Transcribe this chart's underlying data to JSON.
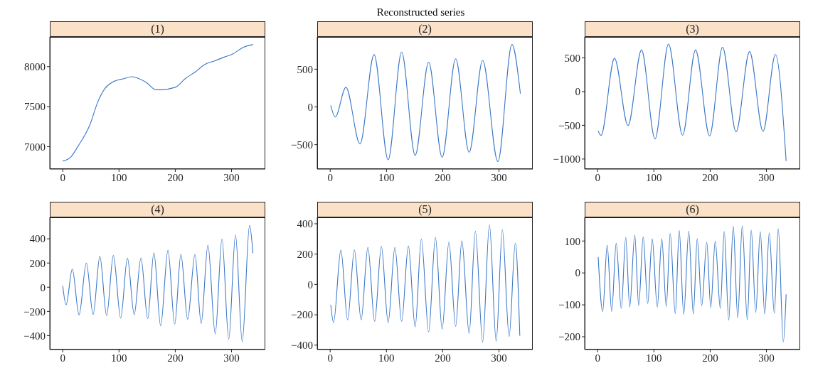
{
  "chart_data": [
    {
      "type": "line",
      "title": "(1)",
      "annotations": [
        "Reconstructed series"
      ],
      "xlim": [
        -23,
        360
      ],
      "xticks": [
        0,
        100,
        200,
        300
      ],
      "ylim": [
        6720,
        8371
      ],
      "yticks": [
        7000,
        7500,
        8000
      ],
      "grid": false,
      "legend": false,
      "marker": "none",
      "line_style": "solid",
      "series": [
        {
          "color": "#3a78c8",
          "x": [
            0,
            14,
            27,
            49,
            62,
            75,
            88,
            110,
            122,
            148,
            166,
            174,
            200,
            218,
            235,
            252,
            270,
            287,
            300,
            322,
            338
          ],
          "values": [
            6821,
            6868,
            7003,
            7286,
            7553,
            7726,
            7805,
            7852,
            7874,
            7805,
            7711,
            7711,
            7742,
            7852,
            7931,
            8025,
            8072,
            8119,
            8151,
            8245,
            8277
          ]
        }
      ]
    },
    {
      "type": "line",
      "title": "(2)",
      "xlim": [
        -23,
        360
      ],
      "xticks": [
        0,
        100,
        200,
        300
      ],
      "ylim": [
        -823,
        927
      ],
      "yticks": [
        -500,
        0,
        500
      ],
      "grid": false,
      "legend": false,
      "marker": "none",
      "line_style": "solid",
      "series": [
        {
          "color": "#3a78c8",
          "x": [
            1,
            9,
            28,
            53,
            78,
            103,
            127,
            151,
            175,
            199,
            223,
            247,
            271,
            298,
            323,
            338
          ],
          "values": [
            20,
            -133,
            260,
            -490,
            693,
            -700,
            727,
            -640,
            593,
            -667,
            637,
            -600,
            617,
            -723,
            827,
            177
          ]
        }
      ]
    },
    {
      "type": "line",
      "title": "(3)",
      "xlim": [
        -23,
        360
      ],
      "xticks": [
        0,
        100,
        200,
        300
      ],
      "ylim": [
        -1149,
        810
      ],
      "yticks": [
        -1000,
        -500,
        0,
        500
      ],
      "grid": false,
      "legend": false,
      "marker": "none",
      "line_style": "solid",
      "series": [
        {
          "color": "#3a78c8",
          "x": [
            1,
            6,
            30,
            54,
            78,
            102,
            126,
            151,
            174,
            199,
            222,
            246,
            270,
            294,
            316,
            335
          ],
          "values": [
            -582,
            -649,
            493,
            -504,
            616,
            -701,
            705,
            -646,
            616,
            -657,
            657,
            -597,
            593,
            -590,
            549,
            -1030
          ]
        }
      ]
    },
    {
      "type": "line",
      "title": "(4)",
      "xlim": [
        -23,
        360
      ],
      "xticks": [
        0,
        100,
        200,
        300
      ],
      "ylim": [
        -515,
        577
      ],
      "yticks": [
        -400,
        -200,
        0,
        200,
        400
      ],
      "grid": false,
      "legend": false,
      "marker": "none",
      "line_style": "solid",
      "series": [
        {
          "color": "#3a78c8",
          "x": [
            0,
            6,
            17,
            29,
            42,
            54,
            66,
            78,
            90,
            103,
            115,
            127,
            139,
            151,
            162,
            174,
            187,
            199,
            210,
            222,
            235,
            246,
            258,
            271,
            283,
            295,
            307,
            319,
            332,
            338
          ],
          "values": [
            12,
            -145,
            150,
            -228,
            200,
            -225,
            255,
            -235,
            262,
            -255,
            240,
            -225,
            242,
            -260,
            285,
            -320,
            305,
            -305,
            272,
            -265,
            270,
            -300,
            348,
            -385,
            398,
            -430,
            432,
            -450,
            510,
            280
          ]
        }
      ]
    },
    {
      "type": "line",
      "title": "(5)",
      "xlim": [
        -23,
        360
      ],
      "xticks": [
        0,
        100,
        200,
        300
      ],
      "ylim": [
        -429,
        442
      ],
      "yticks": [
        -400,
        -200,
        0,
        200,
        400
      ],
      "grid": false,
      "legend": false,
      "marker": "none",
      "line_style": "solid",
      "series": [
        {
          "color": "#3a78c8",
          "x": [
            1,
            6,
            19,
            31,
            43,
            55,
            67,
            79,
            91,
            103,
            115,
            127,
            139,
            151,
            162,
            175,
            187,
            199,
            211,
            223,
            234,
            247,
            258,
            271,
            283,
            295,
            306,
            318,
            329,
            337
          ],
          "values": [
            -135,
            -250,
            226,
            -234,
            228,
            -234,
            244,
            -244,
            251,
            -251,
            244,
            -244,
            254,
            -280,
            300,
            -313,
            310,
            -294,
            279,
            -277,
            287,
            -322,
            351,
            -379,
            393,
            -374,
            360,
            -343,
            272,
            -338
          ]
        }
      ]
    },
    {
      "type": "line",
      "title": "(6)",
      "xlim": [
        -23,
        360
      ],
      "xticks": [
        0,
        100,
        200,
        300
      ],
      "ylim": [
        -240,
        174
      ],
      "yticks": [
        -200,
        -100,
        0,
        100
      ],
      "grid": false,
      "legend": false,
      "marker": "none",
      "line_style": "solid",
      "series": [
        {
          "color": "#3a78c8",
          "x": [
            1,
            9,
            17,
            25,
            33,
            42,
            50,
            57,
            66,
            73,
            81,
            89,
            97,
            106,
            114,
            122,
            129,
            138,
            145,
            153,
            162,
            170,
            177,
            185,
            194,
            201,
            209,
            218,
            225,
            233,
            241,
            249,
            257,
            266,
            273,
            281,
            289,
            297,
            305,
            314,
            321,
            330,
            335
          ],
          "values": [
            50,
            -121,
            87,
            -121,
            93,
            -111,
            111,
            -107,
            119,
            -102,
            113,
            -96,
            107,
            -107,
            107,
            -105,
            124,
            -128,
            133,
            -130,
            131,
            -129,
            107,
            -103,
            96,
            -108,
            100,
            -111,
            130,
            -148,
            146,
            -140,
            148,
            -147,
            134,
            -124,
            130,
            -129,
            125,
            -126,
            139,
            -216,
            -67
          ]
        }
      ]
    }
  ]
}
